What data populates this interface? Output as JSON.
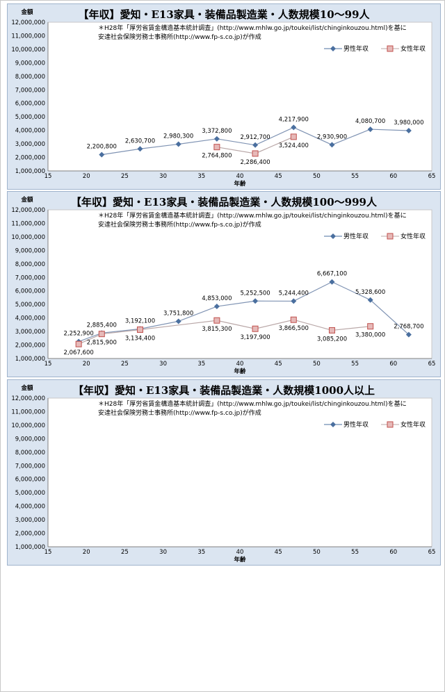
{
  "charts": [
    {
      "title": "【年収】愛知・E13家具・装備品製造業・人数規模10～99人",
      "note_line1": "＊H28年「厚労省賃金構造基本統計調査」(http://www.mhlw.go.jp/toukei/list/chinginkouzou.html)を基に",
      "note_line2": "安達社会保険労務士事務所(http://www.fp-s.co.jp)が作成",
      "ylabel": "金額",
      "xlabel": "年齢",
      "legend_male": "男性年収",
      "legend_female": "女性年収"
    },
    {
      "title": "【年収】愛知・E13家具・装備品製造業・人数規模100～999人",
      "note_line1": "＊H28年「厚労省賃金構造基本統計調査」(http://www.mhlw.go.jp/toukei/list/chinginkouzou.html)を基に",
      "note_line2": "安達社会保険労務士事務所(http://www.fp-s.co.jp)が作成",
      "ylabel": "金額",
      "xlabel": "年齢",
      "legend_male": "男性年収",
      "legend_female": "女性年収"
    },
    {
      "title": "【年収】愛知・E13家具・装備品製造業・人数規模1000人以上",
      "note_line1": "＊H28年「厚労省賃金構造基本統計調査」(http://www.mhlw.go.jp/toukei/list/chinginkouzou.html)を基に",
      "note_line2": "安達社会保険労務士事務所(http://www.fp-s.co.jp)が作成",
      "ylabel": "金額",
      "xlabel": "年齢",
      "legend_male": "男性年収",
      "legend_female": "女性年収"
    }
  ],
  "chart_data": [
    {
      "type": "line",
      "title": "【年収】愛知・E13家具・装備品製造業・人数規模10～99人",
      "xlabel": "年齢",
      "ylabel": "金額",
      "xlim": [
        15,
        65
      ],
      "ylim": [
        1000000,
        12000000
      ],
      "xticks": [
        15,
        20,
        25,
        30,
        35,
        40,
        45,
        50,
        55,
        60,
        65
      ],
      "yticks": [
        1000000,
        2000000,
        3000000,
        4000000,
        5000000,
        6000000,
        7000000,
        8000000,
        9000000,
        10000000,
        11000000,
        12000000
      ],
      "legend_position": "top-right",
      "grid": false,
      "series": [
        {
          "name": "男性年収",
          "color": "#4a6f9f",
          "marker": "diamond",
          "x": [
            22,
            27,
            32,
            37,
            42,
            47,
            52,
            57,
            62
          ],
          "values": [
            2200800,
            2630700,
            2980300,
            3372800,
            2912700,
            4217900,
            2930900,
            4080700,
            3980000
          ],
          "labels": [
            "2,200,800",
            "2,630,700",
            "2,980,300",
            "3,372,800",
            "2,912,700",
            "4,217,900",
            "2,930,900",
            "4,080,700",
            "3,980,000"
          ],
          "label_pos": [
            "above",
            "above",
            "above",
            "above",
            "above",
            "above",
            "above",
            "above",
            "above"
          ]
        },
        {
          "name": "女性年収",
          "color": "#c0504d",
          "marker": "square",
          "x": [
            37,
            42,
            47
          ],
          "values": [
            2764800,
            2286400,
            3524400
          ],
          "labels": [
            "2,764,800",
            "2,286,400",
            "3,524,400"
          ],
          "label_pos": [
            "below",
            "below",
            "below"
          ]
        }
      ]
    },
    {
      "type": "line",
      "title": "【年収】愛知・E13家具・装備品製造業・人数規模100～999人",
      "xlabel": "年齢",
      "ylabel": "金額",
      "xlim": [
        15,
        65
      ],
      "ylim": [
        1000000,
        12000000
      ],
      "xticks": [
        15,
        20,
        25,
        30,
        35,
        40,
        45,
        50,
        55,
        60,
        65
      ],
      "yticks": [
        1000000,
        2000000,
        3000000,
        4000000,
        5000000,
        6000000,
        7000000,
        8000000,
        9000000,
        10000000,
        11000000,
        12000000
      ],
      "legend_position": "top-right",
      "grid": false,
      "series": [
        {
          "name": "男性年収",
          "color": "#4a6f9f",
          "marker": "diamond",
          "x": [
            19,
            22,
            27,
            32,
            37,
            42,
            47,
            52,
            57,
            62
          ],
          "values": [
            2252900,
            2885400,
            3192100,
            3751800,
            4853000,
            5252500,
            5244400,
            6667100,
            5328600,
            2768700
          ],
          "labels": [
            "2,252,900",
            "2,885,400",
            "3,192,100",
            "3,751,800",
            "4,853,000",
            "5,252,500",
            "5,244,400",
            "6,667,100",
            "5,328,600",
            "2,768,700"
          ],
          "label_pos": [
            "above",
            "above",
            "above",
            "above",
            "above",
            "above",
            "above",
            "above",
            "above",
            "above"
          ]
        },
        {
          "name": "女性年収",
          "color": "#c0504d",
          "marker": "square",
          "x": [
            19,
            22,
            27,
            37,
            42,
            47,
            52,
            57
          ],
          "values": [
            2067600,
            2815900,
            3134400,
            3815300,
            3197900,
            3866500,
            3085200,
            3380000
          ],
          "labels": [
            "2,067,600",
            "2,815,900",
            "3,134,400",
            "3,815,300",
            "3,197,900",
            "3,866,500",
            "3,085,200",
            "3,380,000"
          ],
          "label_pos": [
            "below",
            "below",
            "below",
            "below",
            "below",
            "below",
            "below",
            "below"
          ]
        }
      ]
    },
    {
      "type": "line",
      "title": "【年収】愛知・E13家具・装備品製造業・人数規模1000人以上",
      "xlabel": "年齢",
      "ylabel": "金額",
      "xlim": [
        15,
        65
      ],
      "ylim": [
        1000000,
        12000000
      ],
      "xticks": [
        15,
        20,
        25,
        30,
        35,
        40,
        45,
        50,
        55,
        60,
        65
      ],
      "yticks": [
        1000000,
        2000000,
        3000000,
        4000000,
        5000000,
        6000000,
        7000000,
        8000000,
        9000000,
        10000000,
        11000000,
        12000000
      ],
      "legend_position": "top-right",
      "grid": false,
      "series": [
        {
          "name": "男性年収",
          "color": "#4a6f9f",
          "marker": "diamond",
          "x": [],
          "values": [],
          "labels": [],
          "label_pos": []
        },
        {
          "name": "女性年収",
          "color": "#c0504d",
          "marker": "square",
          "x": [],
          "values": [],
          "labels": [],
          "label_pos": []
        }
      ]
    }
  ]
}
